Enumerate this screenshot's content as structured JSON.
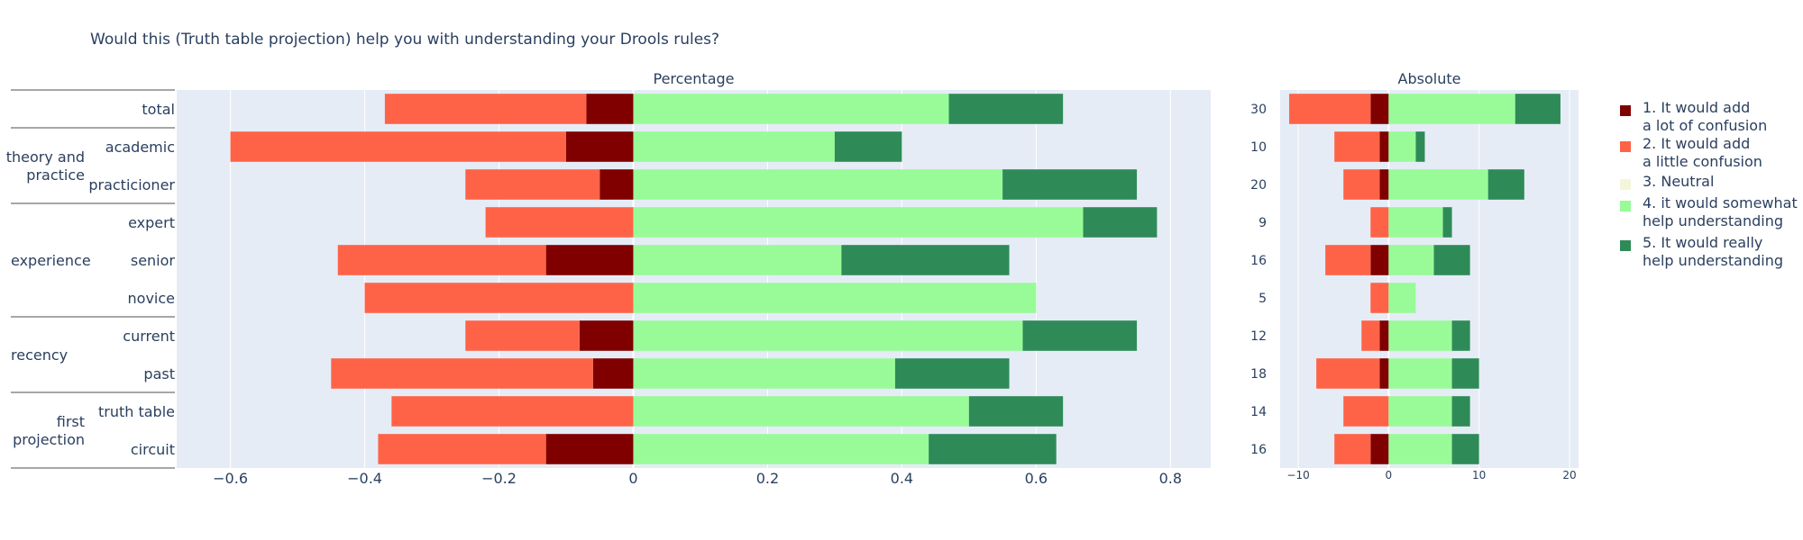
{
  "figure": {
    "title": "Would this (Truth table projection) help you with understanding your Drools rules?"
  },
  "colors": {
    "plot_bg": "#e5ecf6",
    "grid": "#ffffff",
    "text": "#2a3f5f",
    "separator": "#888888"
  },
  "groups": [
    {
      "name": "theory and\npractice",
      "rows": [
        1,
        2
      ]
    },
    {
      "name": "experience",
      "rows": [
        3,
        4,
        5
      ]
    },
    {
      "name": "recency",
      "rows": [
        6,
        7
      ]
    },
    {
      "name": "first\nprojection",
      "rows": [
        8,
        9
      ]
    }
  ],
  "chart_data": [
    {
      "type": "bar",
      "orientation": "horizontal",
      "stacked": "diverging",
      "title": "Percentage",
      "xlim": [
        -0.68,
        0.86
      ],
      "x_ticks": [
        -0.6,
        -0.4,
        -0.2,
        0,
        0.2,
        0.4,
        0.6,
        0.8
      ],
      "x_tick_labels": [
        "−0.6",
        "−0.4",
        "−0.2",
        "0",
        "0.2",
        "0.4",
        "0.6",
        "0.8"
      ],
      "categories": [
        "total",
        "academic",
        "practicioner",
        "expert",
        "senior",
        "novice",
        "current",
        "past",
        "truth table",
        "circuit"
      ],
      "series": [
        {
          "name": "1. It would add a lot of confusion",
          "color": "#800000",
          "values": [
            -0.07,
            -0.1,
            -0.05,
            0,
            -0.13,
            0,
            -0.08,
            -0.06,
            0,
            -0.13
          ]
        },
        {
          "name": "2. It would add a little confusion",
          "color": "#ff6347",
          "values": [
            -0.3,
            -0.5,
            -0.2,
            -0.22,
            -0.31,
            -0.4,
            -0.17,
            -0.39,
            -0.36,
            -0.25
          ]
        },
        {
          "name": "3. Neutral",
          "color": "#f5f5dc",
          "values": [
            0,
            0,
            0,
            0,
            0,
            0,
            0,
            0,
            0,
            0
          ]
        },
        {
          "name": "4. it would somewhat help understanding",
          "color": "#98fb98",
          "values": [
            0.47,
            0.3,
            0.55,
            0.67,
            0.31,
            0.6,
            0.58,
            0.39,
            0.5,
            0.44
          ]
        },
        {
          "name": "5. It would really help understanding",
          "color": "#2e8b57",
          "values": [
            0.17,
            0.1,
            0.2,
            0.11,
            0.25,
            0,
            0.17,
            0.17,
            0.14,
            0.19
          ]
        }
      ],
      "grid": true
    },
    {
      "type": "bar",
      "orientation": "horizontal",
      "stacked": "diverging",
      "title": "Absolute",
      "xlim": [
        -12,
        21
      ],
      "x_ticks": [
        -10,
        0,
        10,
        20
      ],
      "x_tick_labels": [
        "−10",
        "0",
        "10",
        "20"
      ],
      "categories": [
        "30",
        "10",
        "20",
        "9",
        "16",
        "5",
        "12",
        "18",
        "14",
        "16"
      ],
      "series": [
        {
          "name": "1. It would add a lot of confusion",
          "color": "#800000",
          "values": [
            -2,
            -1,
            -1,
            0,
            -2,
            0,
            -1,
            -1,
            0,
            -2
          ]
        },
        {
          "name": "2. It would add a little confusion",
          "color": "#ff6347",
          "values": [
            -9,
            -5,
            -4,
            -2,
            -5,
            -2,
            -2,
            -7,
            -5,
            -4
          ]
        },
        {
          "name": "3. Neutral",
          "color": "#f5f5dc",
          "values": [
            0,
            0,
            0,
            0,
            0,
            0,
            0,
            0,
            0,
            0
          ]
        },
        {
          "name": "4. it would somewhat help understanding",
          "color": "#98fb98",
          "values": [
            14,
            3,
            11,
            6,
            5,
            3,
            7,
            7,
            7,
            7
          ]
        },
        {
          "name": "5. It would really help understanding",
          "color": "#2e8b57",
          "values": [
            5,
            1,
            4,
            1,
            4,
            0,
            2,
            3,
            2,
            3
          ]
        }
      ],
      "grid": true
    }
  ],
  "legend": {
    "placement": "right",
    "items": [
      {
        "label": "1. It would add\na lot of confusion",
        "color": "#800000"
      },
      {
        "label": "2. It would add\na little confusion",
        "color": "#ff6347"
      },
      {
        "label": "3. Neutral",
        "color": "#f5f5dc"
      },
      {
        "label": "4. it would somewhat\nhelp understanding",
        "color": "#98fb98"
      },
      {
        "label": "5. It would really\nhelp understanding",
        "color": "#2e8b57"
      }
    ]
  }
}
